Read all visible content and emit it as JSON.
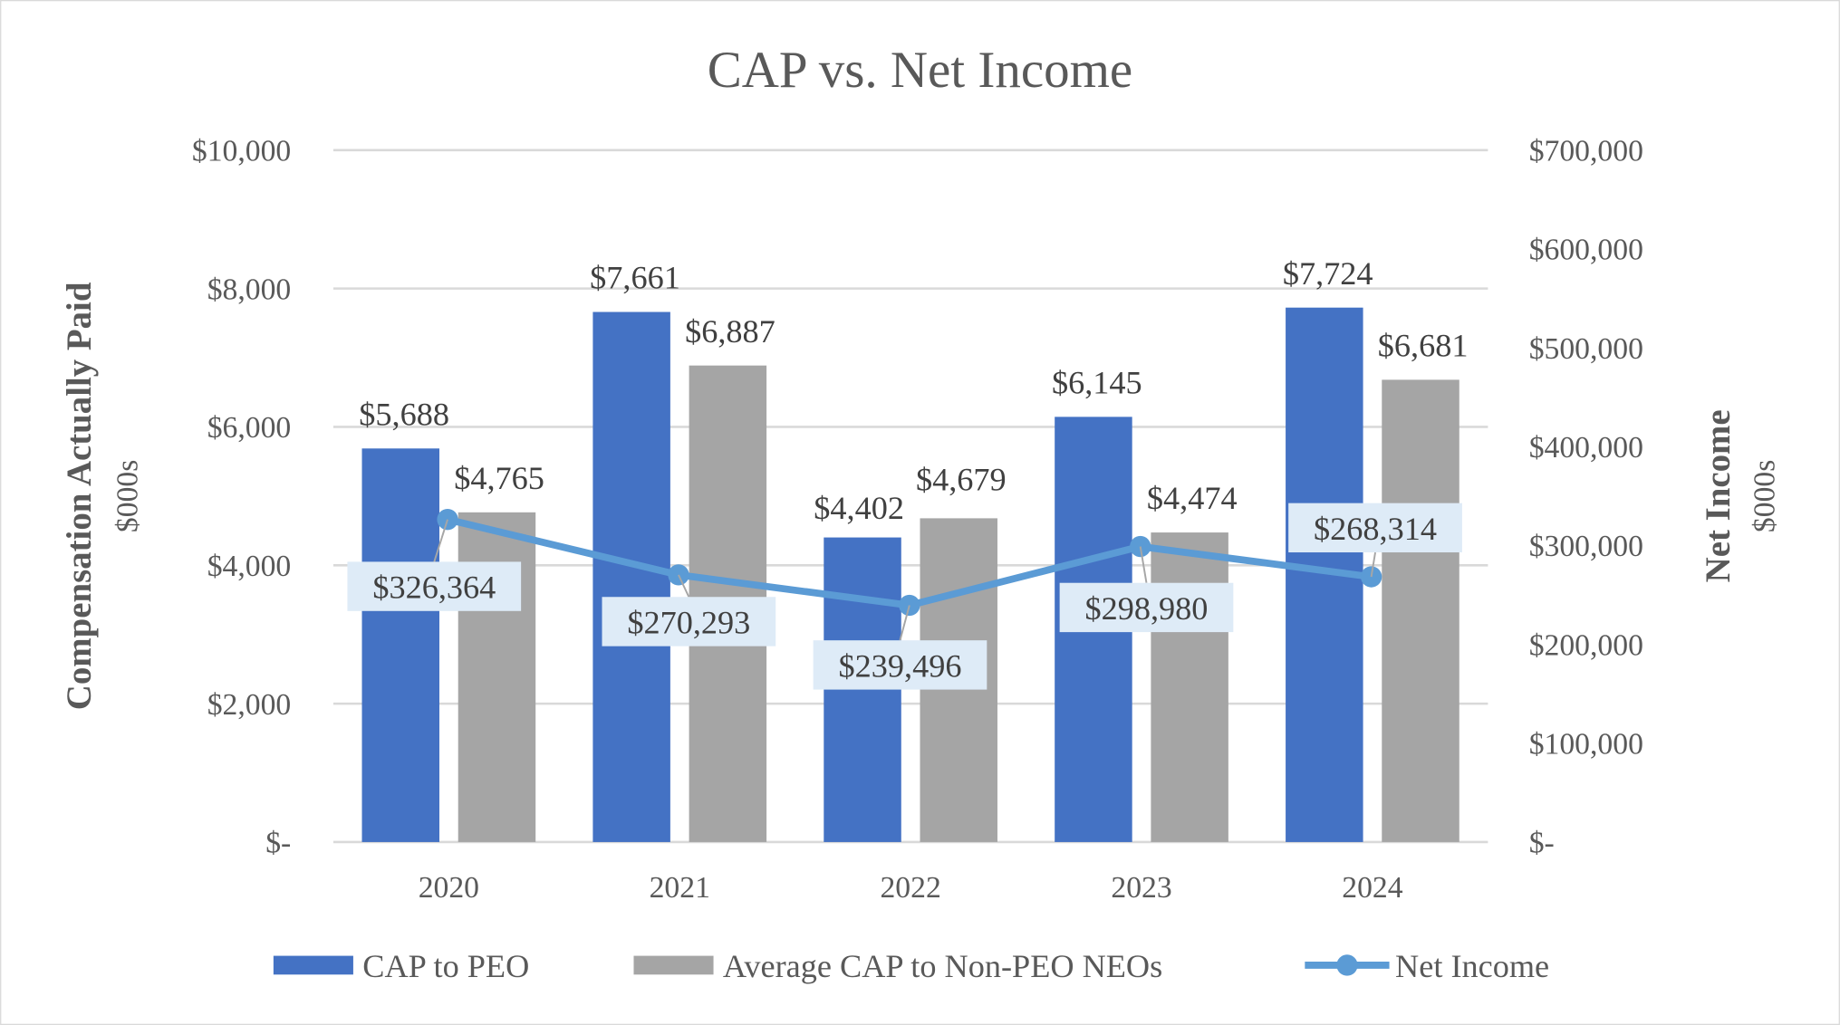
{
  "chart_data": {
    "type": "bar",
    "title": "CAP vs. Net Income",
    "categories": [
      "2020",
      "2021",
      "2022",
      "2023",
      "2024"
    ],
    "series": [
      {
        "name": "CAP to PEO",
        "type": "bar",
        "axis": "left",
        "color": "#4472C4",
        "values": [
          5688,
          7661,
          4402,
          6145,
          7724
        ],
        "labels": [
          "$5,688",
          "$7,661",
          "$4,402",
          "$6,145",
          "$7,724"
        ]
      },
      {
        "name": "Average CAP to Non-PEO NEOs",
        "type": "bar",
        "axis": "left",
        "color": "#A5A5A5",
        "values": [
          4765,
          6887,
          4679,
          4474,
          6681
        ],
        "labels": [
          "$4,765",
          "$6,887",
          "$4,679",
          "$4,474",
          "$6,681"
        ]
      },
      {
        "name": "Net Income",
        "type": "line",
        "axis": "right",
        "color": "#5B9BD5",
        "values": [
          326364,
          270293,
          239496,
          298980,
          268314
        ],
        "labels": [
          "$326,364",
          "$270,293",
          "$239,496",
          "$298,980",
          "$268,314"
        ]
      }
    ],
    "y_left": {
      "label": "Compensation Actually Paid",
      "sublabel": "$000s",
      "range": [
        0,
        10000
      ],
      "ticks": [
        0,
        2000,
        4000,
        6000,
        8000,
        10000
      ],
      "tick_labels": [
        "$-",
        "$2,000",
        "$4,000",
        "$6,000",
        "$8,000",
        "$10,000"
      ]
    },
    "y_right": {
      "label": "Net Income",
      "sublabel": "$000s",
      "range": [
        0,
        700000
      ],
      "ticks": [
        0,
        100000,
        200000,
        300000,
        400000,
        500000,
        600000,
        700000
      ],
      "tick_labels": [
        "$-",
        "$100,000",
        "$200,000",
        "$300,000",
        "$400,000",
        "$500,000",
        "$600,000",
        "$700,000"
      ]
    },
    "grid": true,
    "legend_position": "bottom",
    "label_box_color": "#DEEBF7"
  }
}
